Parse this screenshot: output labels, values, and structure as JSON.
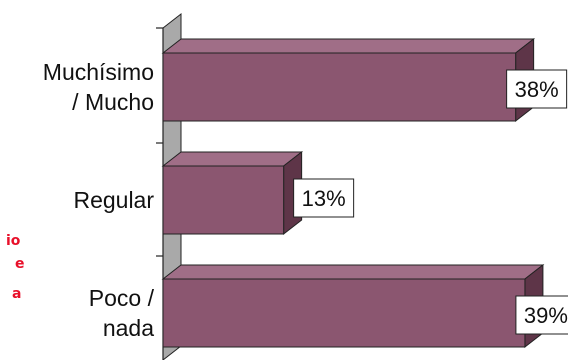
{
  "chart_data": {
    "type": "bar",
    "orientation": "horizontal",
    "style": "3d",
    "categories": [
      [
        "Muchísimo",
        "/ Mucho"
      ],
      [
        "Regular"
      ],
      [
        "Poco /",
        "nada"
      ]
    ],
    "values": [
      38,
      13,
      39
    ],
    "value_labels": [
      "38%",
      "13%",
      "39%"
    ],
    "xlim": [
      0,
      42
    ],
    "grid": false,
    "legend": "none",
    "colors": {
      "bar_front": "#8b5670",
      "bar_top": "#a06e87",
      "bar_side": "#5e3548",
      "wall": "#a9a9a9",
      "label_box": "#ffffff",
      "side_note": "#e8102a"
    }
  },
  "side_note": [
    "io",
    "e",
    "a"
  ]
}
